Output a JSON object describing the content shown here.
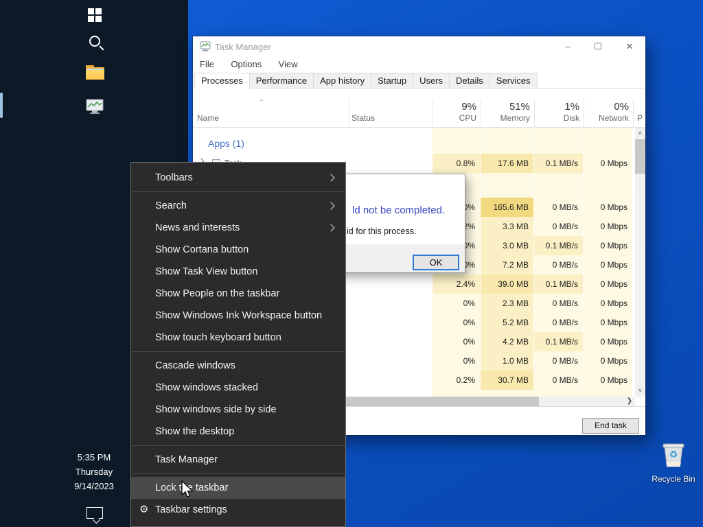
{
  "colors": {
    "desktop_blue": "#0b51c4",
    "taskbar_bg": "#0c1a27",
    "menu_bg": "#2b2b2b",
    "menu_highlight": "#4a4a4a",
    "group_header_blue": "#4572c4",
    "dialog_message_blue": "#3a46c0",
    "ok_focus_border": "#2e7bd6",
    "heat": [
      "#fdf9e3",
      "#fbf0c5",
      "#f8e8ab",
      "#f2d980"
    ]
  },
  "taskbar": {
    "icons": [
      "start",
      "search",
      "file-explorer",
      "task-manager"
    ],
    "clock": {
      "time": "5:35 PM",
      "day": "Thursday",
      "date": "9/14/2023"
    }
  },
  "desktop": {
    "recycle_bin_label": "Recycle Bin"
  },
  "task_manager": {
    "title": "Task Manager",
    "window_controls": {
      "minimize": "–",
      "maximize": "☐",
      "close": "✕"
    },
    "menubar": [
      "File",
      "Options",
      "View"
    ],
    "tabs": [
      {
        "label": "Processes",
        "active": true
      },
      {
        "label": "Performance",
        "active": false
      },
      {
        "label": "App history",
        "active": false
      },
      {
        "label": "Startup",
        "active": false
      },
      {
        "label": "Users",
        "active": false
      },
      {
        "label": "Details",
        "active": false
      },
      {
        "label": "Services",
        "active": false
      }
    ],
    "columns": {
      "name": "Name",
      "status": "Status",
      "cpu_pct": "9%",
      "cpu": "CPU",
      "mem_pct": "51%",
      "mem": "Memory",
      "disk_pct": "1%",
      "disk": "Disk",
      "net_pct": "0%",
      "net": "Network",
      "extra": "P"
    },
    "rows": [
      {
        "type": "group",
        "label": "Apps (1)"
      },
      {
        "type": "proc",
        "name": "Task Ma",
        "cpu": "0.8%",
        "mem": "17.6 MB",
        "disk": "0.1 MB/s",
        "net": "0 Mbps",
        "levels": [
          1,
          2,
          1,
          0
        ]
      },
      {
        "type": "gap"
      },
      {
        "type": "proc",
        "name": "",
        "cpu": "0%",
        "mem": "165.6 MB",
        "disk": "0 MB/s",
        "net": "0 Mbps",
        "levels": [
          0,
          3,
          0,
          0
        ]
      },
      {
        "type": "proc",
        "name": "",
        "cpu": "0.2%",
        "mem": "3.3 MB",
        "disk": "0 MB/s",
        "net": "0 Mbps",
        "levels": [
          0,
          1,
          0,
          0
        ]
      },
      {
        "type": "proc",
        "name": "",
        "cpu": "0%",
        "mem": "3.0 MB",
        "disk": "0.1 MB/s",
        "net": "0 Mbps",
        "levels": [
          0,
          1,
          1,
          0
        ]
      },
      {
        "type": "proc",
        "name": "",
        "cpu": "0%",
        "mem": "7.2 MB",
        "disk": "0 MB/s",
        "net": "0 Mbps",
        "levels": [
          0,
          1,
          0,
          0
        ]
      },
      {
        "type": "proc",
        "name": "",
        "cpu": "2.4%",
        "mem": "39.0 MB",
        "disk": "0.1 MB/s",
        "net": "0 Mbps",
        "levels": [
          1,
          2,
          1,
          0
        ]
      },
      {
        "type": "proc",
        "name": "",
        "cpu": "0%",
        "mem": "2.3 MB",
        "disk": "0 MB/s",
        "net": "0 Mbps",
        "levels": [
          0,
          1,
          0,
          0
        ]
      },
      {
        "type": "proc",
        "name": "",
        "cpu": "0%",
        "mem": "5.2 MB",
        "disk": "0 MB/s",
        "net": "0 Mbps",
        "levels": [
          0,
          1,
          0,
          0
        ]
      },
      {
        "type": "proc",
        "name": "",
        "cpu": "0%",
        "mem": "4.2 MB",
        "disk": "0.1 MB/s",
        "net": "0 Mbps",
        "levels": [
          0,
          1,
          1,
          0
        ]
      },
      {
        "type": "proc",
        "name": "",
        "cpu": "0%",
        "mem": "1.0 MB",
        "disk": "0 MB/s",
        "net": "0 Mbps",
        "levels": [
          0,
          1,
          0,
          0
        ]
      },
      {
        "type": "proc",
        "name": "",
        "cpu": "0.2%",
        "mem": "30.7 MB",
        "disk": "0 MB/s",
        "net": "0 Mbps",
        "levels": [
          0,
          2,
          0,
          0
        ]
      }
    ],
    "end_task_label": "End task"
  },
  "dialog": {
    "message_fragment": "ld not be completed.",
    "detail_fragment": "id for this process.",
    "ok_label": "OK"
  },
  "context_menu": {
    "items": [
      {
        "label": "Toolbars",
        "submenu": true
      },
      {
        "separator": true
      },
      {
        "label": "Search",
        "submenu": true
      },
      {
        "label": "News and interests",
        "submenu": true
      },
      {
        "label": "Show Cortana button"
      },
      {
        "label": "Show Task View button"
      },
      {
        "label": "Show People on the taskbar"
      },
      {
        "label": "Show Windows Ink Workspace button"
      },
      {
        "label": "Show touch keyboard button"
      },
      {
        "separator": true
      },
      {
        "label": "Cascade windows"
      },
      {
        "label": "Show windows stacked"
      },
      {
        "label": "Show windows side by side"
      },
      {
        "label": "Show the desktop"
      },
      {
        "separator": true
      },
      {
        "label": "Task Manager"
      },
      {
        "separator": true
      },
      {
        "label": "Lock the taskbar",
        "highlighted": true
      },
      {
        "label": "Taskbar settings",
        "icon": "gear"
      }
    ]
  }
}
